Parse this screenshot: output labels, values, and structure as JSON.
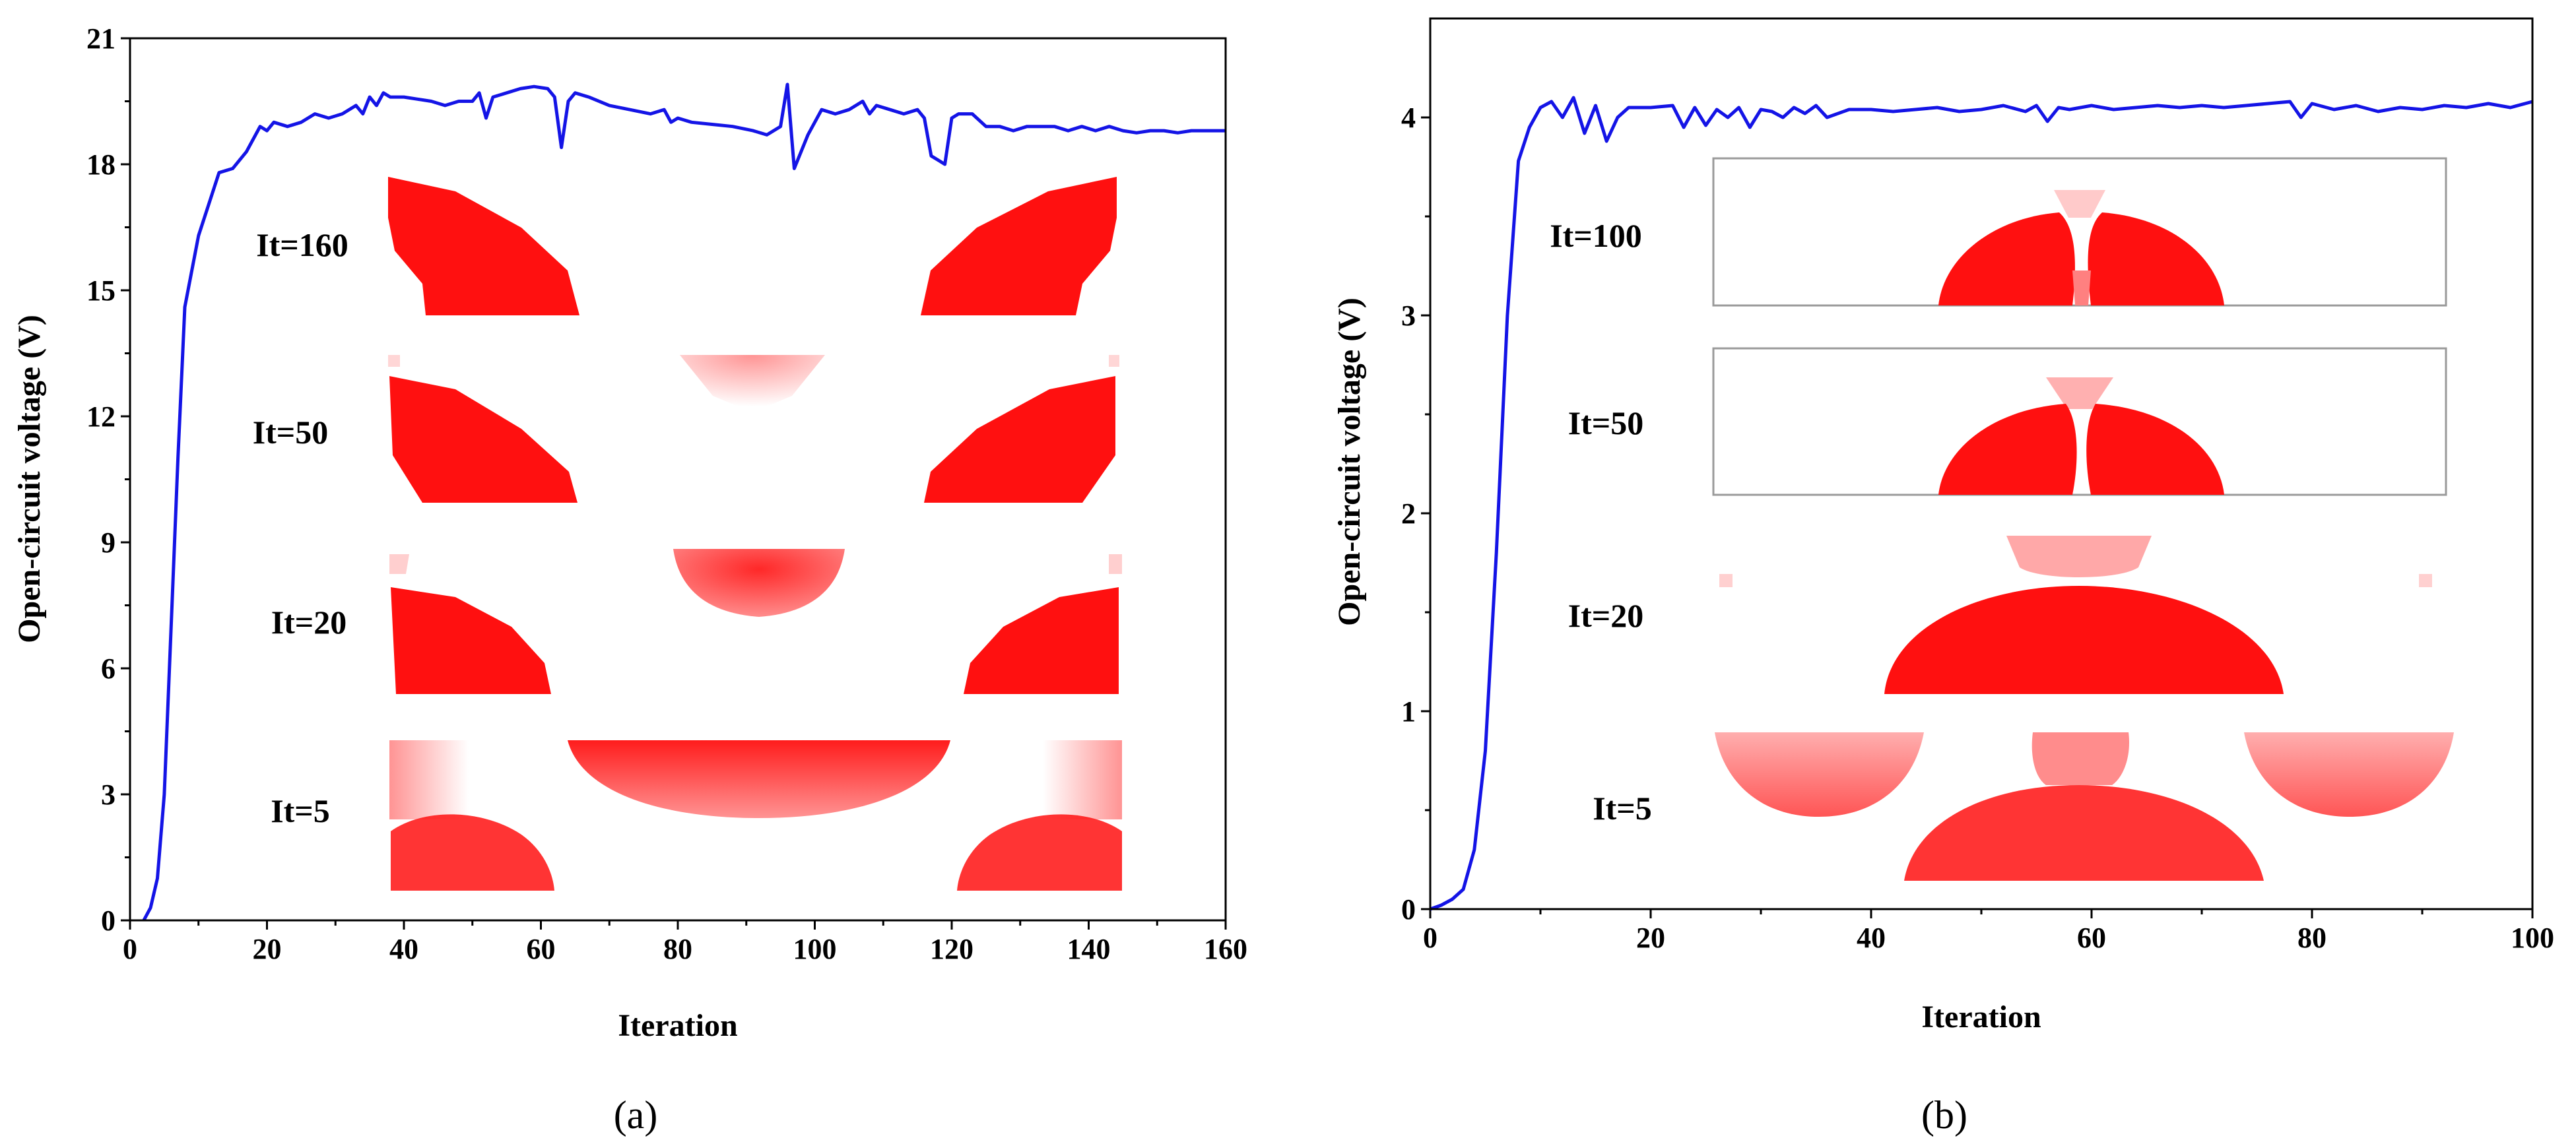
{
  "figure": {
    "panel_labels": [
      "(a)",
      "(b)"
    ]
  },
  "colors": {
    "line": "#1414e6",
    "material": "#ff1010",
    "axes": "#000000"
  },
  "chart_data": [
    {
      "type": "line",
      "panel": "(a)",
      "xlabel": "Iteration",
      "ylabel": "Open-circuit voltage (V)",
      "xlim": [
        0,
        160
      ],
      "ylim": [
        0,
        21
      ],
      "xticks": [
        0,
        20,
        40,
        60,
        80,
        100,
        120,
        140,
        160
      ],
      "yticks": [
        0,
        3,
        6,
        9,
        12,
        15,
        18,
        21
      ],
      "series": [
        {
          "name": "Open-circuit voltage",
          "x": [
            2,
            3,
            4,
            5,
            6,
            7,
            8,
            10,
            12,
            13,
            15,
            17,
            19,
            20,
            21,
            23,
            25,
            27,
            29,
            31,
            33,
            34,
            35,
            36,
            37,
            38,
            40,
            42,
            44,
            46,
            48,
            50,
            51,
            52,
            53,
            55,
            57,
            59,
            61,
            62,
            63,
            64,
            65,
            67,
            70,
            73,
            76,
            78,
            79,
            80,
            82,
            85,
            88,
            91,
            93,
            95,
            96,
            97,
            99,
            101,
            103,
            105,
            107,
            108,
            109,
            111,
            113,
            115,
            116,
            117,
            118,
            119,
            120,
            121,
            123,
            125,
            127,
            129,
            131,
            133,
            135,
            137,
            139,
            141,
            143,
            145,
            147,
            149,
            151,
            153,
            155,
            157,
            159,
            160
          ],
          "y": [
            0,
            0.3,
            1,
            3,
            7,
            11,
            14.6,
            16.3,
            17.3,
            17.8,
            17.9,
            18.3,
            18.9,
            18.8,
            19.0,
            18.9,
            19.0,
            19.2,
            19.1,
            19.2,
            19.4,
            19.2,
            19.6,
            19.4,
            19.7,
            19.6,
            19.6,
            19.55,
            19.5,
            19.4,
            19.5,
            19.5,
            19.7,
            19.1,
            19.6,
            19.7,
            19.8,
            19.85,
            19.8,
            19.6,
            18.4,
            19.5,
            19.7,
            19.6,
            19.4,
            19.3,
            19.2,
            19.3,
            19.0,
            19.1,
            19.0,
            18.95,
            18.9,
            18.8,
            18.7,
            18.9,
            19.9,
            17.9,
            18.7,
            19.3,
            19.2,
            19.3,
            19.5,
            19.2,
            19.4,
            19.3,
            19.2,
            19.3,
            19.1,
            18.2,
            18.1,
            18.0,
            19.1,
            19.2,
            19.2,
            18.9,
            18.9,
            18.8,
            18.9,
            18.9,
            18.9,
            18.8,
            18.9,
            18.8,
            18.9,
            18.8,
            18.75,
            18.8,
            18.8,
            18.75,
            18.8,
            18.8,
            18.8,
            18.8
          ]
        }
      ],
      "insets": [
        {
          "label": "It=160"
        },
        {
          "label": "It=50"
        },
        {
          "label": "It=20"
        },
        {
          "label": "It=5"
        }
      ]
    },
    {
      "type": "line",
      "panel": "(b)",
      "xlabel": "Iteration",
      "ylabel": "Open-circuit voltage (V)",
      "xlim": [
        0,
        100
      ],
      "ylim": [
        0,
        4.5
      ],
      "xticks": [
        0,
        20,
        40,
        60,
        80,
        100
      ],
      "yticks": [
        0,
        1,
        2,
        3,
        4
      ],
      "series": [
        {
          "name": "Open-circuit voltage",
          "x": [
            0,
            1,
            2,
            3,
            4,
            5,
            6,
            7,
            8,
            9,
            10,
            11,
            12,
            13,
            14,
            15,
            16,
            17,
            18,
            20,
            22,
            23,
            24,
            25,
            26,
            27,
            28,
            29,
            30,
            31,
            32,
            33,
            34,
            35,
            36,
            38,
            40,
            42,
            44,
            46,
            48,
            50,
            52,
            54,
            55,
            56,
            57,
            58,
            60,
            62,
            64,
            66,
            68,
            70,
            72,
            74,
            76,
            78,
            79,
            80,
            82,
            84,
            86,
            88,
            90,
            92,
            94,
            96,
            98,
            100
          ],
          "y": [
            0,
            0.02,
            0.05,
            0.1,
            0.3,
            0.8,
            1.8,
            3.0,
            3.78,
            3.95,
            4.05,
            4.08,
            4.0,
            4.1,
            3.92,
            4.06,
            3.88,
            4.0,
            4.05,
            4.05,
            4.06,
            3.95,
            4.05,
            3.96,
            4.04,
            4.0,
            4.05,
            3.95,
            4.04,
            4.03,
            4.0,
            4.05,
            4.02,
            4.06,
            4.0,
            4.04,
            4.04,
            4.03,
            4.04,
            4.05,
            4.03,
            4.04,
            4.06,
            4.03,
            4.06,
            3.98,
            4.05,
            4.04,
            4.06,
            4.04,
            4.05,
            4.06,
            4.05,
            4.06,
            4.05,
            4.06,
            4.07,
            4.08,
            4.0,
            4.07,
            4.04,
            4.06,
            4.03,
            4.05,
            4.04,
            4.06,
            4.05,
            4.07,
            4.05,
            4.08
          ]
        }
      ],
      "insets": [
        {
          "label": "It=100"
        },
        {
          "label": "It=50"
        },
        {
          "label": "It=20"
        },
        {
          "label": "It=5"
        }
      ]
    }
  ]
}
